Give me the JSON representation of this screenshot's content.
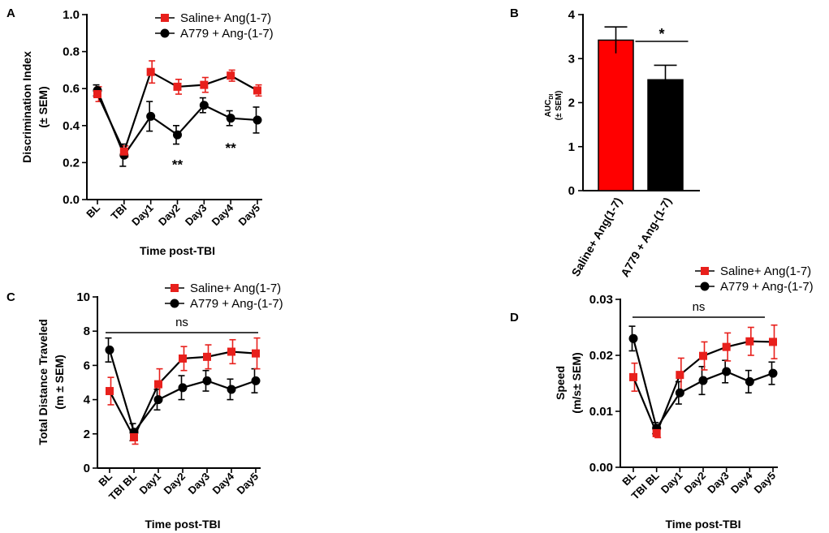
{
  "chart_data": [
    {
      "panel": "A",
      "type": "line",
      "ylabel": "Discrimination Index (± SEM)",
      "ylabel_lines": [
        "Discrimination Index",
        "(± SEM)"
      ],
      "xlabel": "Time post-TBI",
      "ylim": [
        0,
        1
      ],
      "yticks": [
        0,
        0.2,
        0.4,
        0.6,
        0.8,
        1
      ],
      "ytick_labels": [
        "0.0",
        "0.2",
        "0.4",
        "0.6",
        "0.8",
        "1.0"
      ],
      "categories": [
        "BL",
        "TBI",
        "Day1",
        "Day2",
        "Day3",
        "Day4",
        "Day5"
      ],
      "series": [
        {
          "name": "Saline+ Ang(1-7)",
          "color": "#e8201c",
          "marker": "square",
          "values": [
            0.57,
            0.26,
            0.69,
            0.61,
            0.62,
            0.67,
            0.59
          ],
          "errors": [
            0.04,
            0.03,
            0.06,
            0.04,
            0.04,
            0.03,
            0.03
          ]
        },
        {
          "name": "A779 + Ang-(1-7)",
          "color": "#000000",
          "marker": "circle",
          "values": [
            0.59,
            0.24,
            0.45,
            0.35,
            0.51,
            0.44,
            0.43
          ],
          "errors": [
            0.03,
            0.06,
            0.08,
            0.05,
            0.04,
            0.04,
            0.07
          ]
        }
      ],
      "annotations": [
        {
          "text": "**",
          "category": "Day2",
          "value": 0.2
        },
        {
          "text": "**",
          "category": "Day4",
          "value": 0.29
        }
      ]
    },
    {
      "panel": "B",
      "type": "bar",
      "ylabel": "AUC DI (± SEM)",
      "ylabel_main": "AUC",
      "ylabel_sub": "DI",
      "ylabel_line2": "(± SEM)",
      "ylim": [
        0,
        4
      ],
      "yticks": [
        0,
        1,
        2,
        3,
        4
      ],
      "ytick_labels": [
        "0",
        "1",
        "2",
        "3",
        "4"
      ],
      "categories": [
        "Saline+ Ang(1-7)",
        "A779 + Ang-(1-7)"
      ],
      "values": [
        3.42,
        2.52
      ],
      "errors": [
        0.3,
        0.33
      ],
      "colors": [
        "#ff0000",
        "#000000"
      ],
      "significance": "*"
    },
    {
      "panel": "C",
      "type": "line",
      "ylabel": "Total Distance Traveled (m ± SEM)",
      "ylabel_lines": [
        "Total Distance Traveled",
        "(m ± SEM)"
      ],
      "xlabel": "Time post-TBI",
      "ylim": [
        0,
        10
      ],
      "yticks": [
        0,
        2,
        4,
        6,
        8,
        10
      ],
      "ytick_labels": [
        "0",
        "2",
        "4",
        "6",
        "8",
        "10"
      ],
      "categories": [
        "BL",
        "TBI BL",
        "Day1",
        "Day2",
        "Day3",
        "Day4",
        "Day5"
      ],
      "series": [
        {
          "name": "Saline+ Ang(1-7)",
          "color": "#e8201c",
          "marker": "square",
          "values": [
            4.5,
            1.8,
            4.9,
            6.4,
            6.5,
            6.8,
            6.7
          ],
          "errors": [
            0.8,
            0.4,
            0.9,
            0.7,
            0.7,
            0.7,
            0.9
          ]
        },
        {
          "name": "A779 + Ang-(1-7)",
          "color": "#000000",
          "marker": "circle",
          "values": [
            6.9,
            2.1,
            4.0,
            4.7,
            5.1,
            4.6,
            5.1
          ],
          "errors": [
            0.7,
            0.5,
            0.6,
            0.7,
            0.6,
            0.6,
            0.7
          ]
        }
      ],
      "significance": "ns"
    },
    {
      "panel": "D",
      "type": "line",
      "ylabel": "Speed (m/s± SEM)",
      "ylabel_lines": [
        "Speed",
        "(m/s± SEM)"
      ],
      "xlabel": "Time post-TBI",
      "ylim": [
        0,
        0.03
      ],
      "yticks": [
        0,
        0.01,
        0.02,
        0.03
      ],
      "ytick_labels": [
        "0.00",
        "0.01",
        "0.02",
        "0.03"
      ],
      "categories": [
        "BL",
        "TBI BL",
        "Day1",
        "Day2",
        "Day3",
        "Day4",
        "Day5"
      ],
      "series": [
        {
          "name": "Saline+ Ang(1-7)",
          "color": "#e8201c",
          "marker": "square",
          "values": [
            0.0161,
            0.0061,
            0.0165,
            0.0199,
            0.0215,
            0.0225,
            0.0224
          ],
          "errors": [
            0.0025,
            0.0008,
            0.003,
            0.0025,
            0.0025,
            0.0025,
            0.003
          ]
        },
        {
          "name": "A779 + Ang-(1-7)",
          "color": "#000000",
          "marker": "circle",
          "values": [
            0.023,
            0.007,
            0.0133,
            0.0155,
            0.0171,
            0.0153,
            0.0168
          ],
          "errors": [
            0.0022,
            0.001,
            0.002,
            0.0025,
            0.002,
            0.002,
            0.002
          ]
        }
      ],
      "significance": "ns"
    }
  ]
}
